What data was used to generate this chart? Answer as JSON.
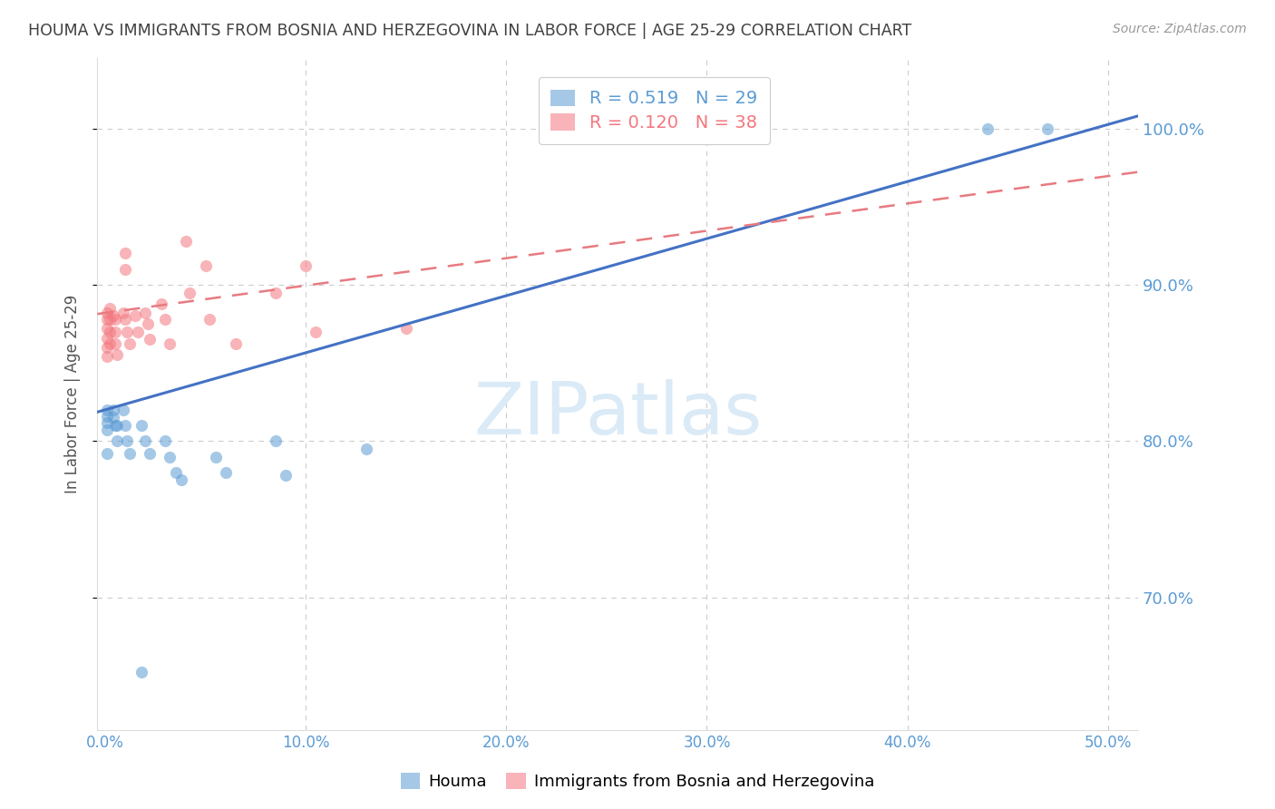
{
  "title": "HOUMA VS IMMIGRANTS FROM BOSNIA AND HERZEGOVINA IN LABOR FORCE | AGE 25-29 CORRELATION CHART",
  "source": "Source: ZipAtlas.com",
  "ylabel": "In Labor Force | Age 25-29",
  "houma_color": "#5b9bd5",
  "bosnia_color": "#f4777f",
  "houma_alpha": 0.55,
  "bosnia_alpha": 0.55,
  "marker_size": 90,
  "background_color": "#ffffff",
  "grid_color": "#cccccc",
  "title_color": "#404040",
  "tick_label_color": "#5b9bd5",
  "watermark_text": "ZIPatlas",
  "watermark_color": "#daeaf7",
  "houma_reg_line_color": "#4472c4",
  "bosnia_reg_line_color": "#e87a80",
  "houma_reg_intercept": 0.82,
  "houma_reg_slope": 0.365,
  "bosnia_reg_intercept": 0.882,
  "bosnia_reg_slope": 0.175,
  "xlim_min": -0.004,
  "xlim_max": 0.515,
  "ylim_min": 0.615,
  "ylim_max": 1.045,
  "houma_x": [
    0.001,
    0.001,
    0.001,
    0.001,
    0.001,
    0.004,
    0.004,
    0.005,
    0.006,
    0.006,
    0.009,
    0.01,
    0.011,
    0.012,
    0.018,
    0.02,
    0.022,
    0.03,
    0.032,
    0.035,
    0.038,
    0.055,
    0.06,
    0.085,
    0.09,
    0.13,
    0.018,
    0.44,
    0.47
  ],
  "houma_y": [
    0.82,
    0.816,
    0.812,
    0.807,
    0.792,
    0.82,
    0.815,
    0.81,
    0.81,
    0.8,
    0.82,
    0.81,
    0.8,
    0.792,
    0.81,
    0.8,
    0.792,
    0.8,
    0.79,
    0.78,
    0.775,
    0.79,
    0.78,
    0.8,
    0.778,
    0.795,
    0.652,
    1.0,
    1.0
  ],
  "bosnia_x": [
    0.001,
    0.001,
    0.001,
    0.001,
    0.001,
    0.001,
    0.002,
    0.002,
    0.002,
    0.002,
    0.004,
    0.005,
    0.005,
    0.005,
    0.006,
    0.009,
    0.01,
    0.01,
    0.01,
    0.011,
    0.012,
    0.015,
    0.016,
    0.02,
    0.021,
    0.022,
    0.028,
    0.03,
    0.032,
    0.04,
    0.042,
    0.05,
    0.052,
    0.065,
    0.085,
    0.1,
    0.105,
    0.15
  ],
  "bosnia_y": [
    0.882,
    0.878,
    0.872,
    0.866,
    0.86,
    0.854,
    0.885,
    0.878,
    0.87,
    0.862,
    0.88,
    0.878,
    0.87,
    0.862,
    0.855,
    0.882,
    0.878,
    0.92,
    0.91,
    0.87,
    0.862,
    0.88,
    0.87,
    0.882,
    0.875,
    0.865,
    0.888,
    0.878,
    0.862,
    0.928,
    0.895,
    0.912,
    0.878,
    0.862,
    0.895,
    0.912,
    0.87,
    0.872
  ]
}
